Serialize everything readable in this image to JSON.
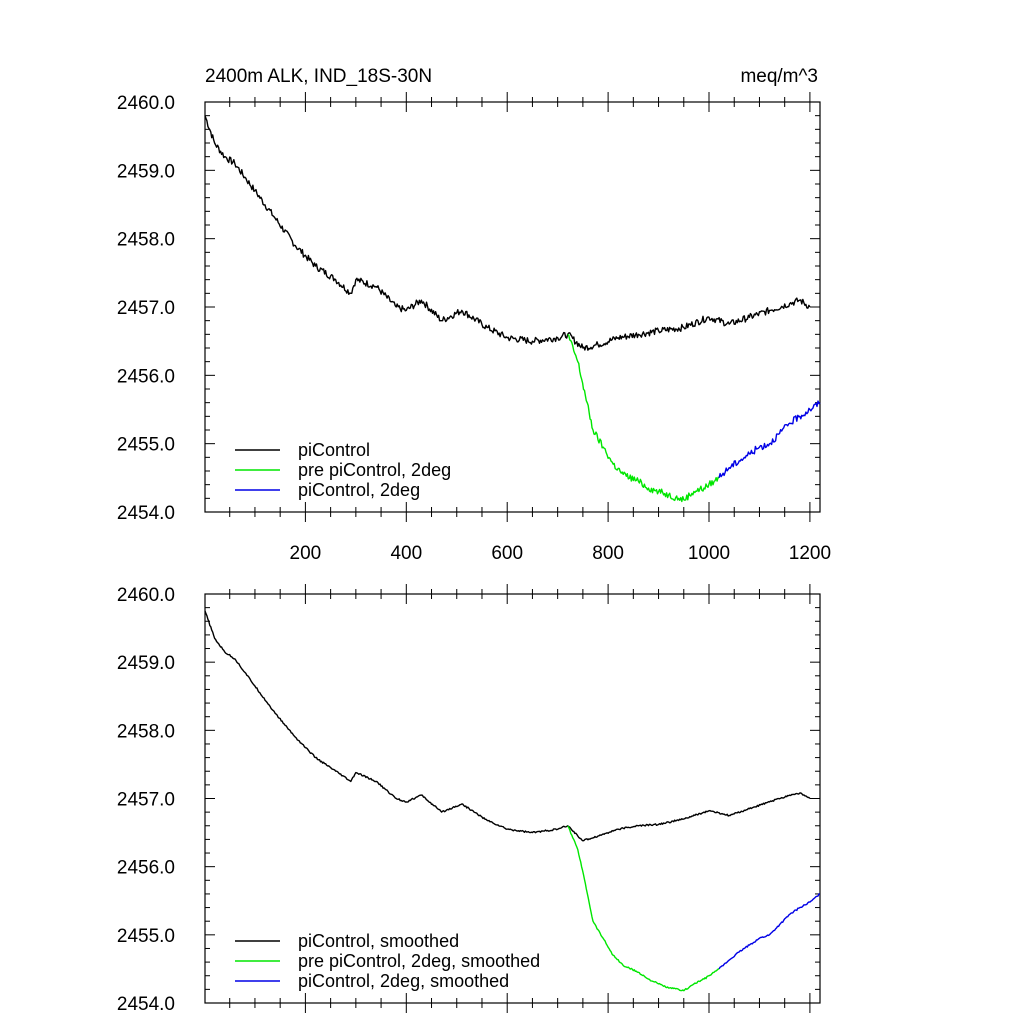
{
  "chart_data": [
    {
      "type": "line",
      "title_left": "2400m ALK, IND_18S-30N",
      "title_right": "meq/m^3",
      "xlim": [
        1,
        1220
      ],
      "ylim": [
        2454.0,
        2460.0
      ],
      "x_ticks": [
        200,
        400,
        600,
        800,
        1000,
        1200
      ],
      "x_tick_labels": [
        "200",
        "400",
        "600",
        "800",
        "1000",
        "1200"
      ],
      "y_ticks": [
        2454.0,
        2455.0,
        2456.0,
        2457.0,
        2458.0,
        2459.0,
        2460.0
      ],
      "y_tick_labels": [
        "2454.0",
        "2455.0",
        "2456.0",
        "2457.0",
        "2458.0",
        "2459.0",
        "2460.0"
      ],
      "legend_position": "bottom-left",
      "series": [
        {
          "name": "piControl",
          "color": "#000000",
          "x": [
            1,
            20,
            40,
            60,
            80,
            100,
            140,
            180,
            220,
            260,
            290,
            300,
            340,
            380,
            400,
            430,
            470,
            510,
            560,
            600,
            650,
            700,
            720,
            750,
            780,
            820,
            860,
            900,
            950,
            1000,
            1040,
            1080,
            1120,
            1160,
            1180,
            1200
          ],
          "y": [
            2459.8,
            2459.4,
            2459.2,
            2459.1,
            2458.9,
            2458.7,
            2458.3,
            2457.9,
            2457.6,
            2457.4,
            2457.2,
            2457.4,
            2457.3,
            2457.0,
            2456.95,
            2457.1,
            2456.8,
            2456.95,
            2456.7,
            2456.55,
            2456.5,
            2456.55,
            2456.6,
            2456.4,
            2456.45,
            2456.55,
            2456.6,
            2456.65,
            2456.7,
            2456.85,
            2456.75,
            2456.85,
            2456.95,
            2457.05,
            2457.1,
            2457.0
          ]
        },
        {
          "name": "pre piControl, 2deg",
          "color": "#00e600",
          "x": [
            720,
            740,
            755,
            770,
            790,
            810,
            830,
            860,
            880,
            900,
            920,
            940,
            950,
            970,
            990,
            1010,
            1020
          ],
          "y": [
            2456.6,
            2456.2,
            2455.7,
            2455.2,
            2454.95,
            2454.7,
            2454.55,
            2454.45,
            2454.35,
            2454.3,
            2454.25,
            2454.2,
            2454.18,
            2454.3,
            2454.35,
            2454.45,
            2454.5
          ]
        },
        {
          "name": "piControl, 2deg",
          "color": "#0000e6",
          "x": [
            1020,
            1040,
            1060,
            1080,
            1100,
            1120,
            1140,
            1160,
            1180,
            1200,
            1220
          ],
          "y": [
            2454.5,
            2454.65,
            2454.75,
            2454.85,
            2454.95,
            2455.0,
            2455.15,
            2455.3,
            2455.4,
            2455.5,
            2455.6
          ]
        }
      ]
    },
    {
      "type": "line",
      "xlim": [
        1,
        1220
      ],
      "ylim": [
        2454.0,
        2460.0
      ],
      "y_ticks": [
        2454.0,
        2455.0,
        2456.0,
        2457.0,
        2458.0,
        2459.0,
        2460.0
      ],
      "y_tick_labels": [
        "2454.0",
        "2455.0",
        "2456.0",
        "2457.0",
        "2458.0",
        "2459.0",
        "2460.0"
      ],
      "x_ticks": [
        200,
        400,
        600,
        800,
        1000,
        1200
      ],
      "legend_position": "bottom-left",
      "series": [
        {
          "name": "piControl, smoothed",
          "color": "#000000",
          "x": [
            1,
            20,
            40,
            60,
            80,
            100,
            140,
            180,
            220,
            260,
            290,
            300,
            340,
            380,
            400,
            430,
            470,
            510,
            560,
            600,
            650,
            700,
            720,
            750,
            780,
            820,
            860,
            900,
            950,
            1000,
            1040,
            1080,
            1120,
            1160,
            1180,
            1200
          ],
          "y": [
            2459.75,
            2459.35,
            2459.15,
            2459.05,
            2458.85,
            2458.65,
            2458.25,
            2457.9,
            2457.6,
            2457.4,
            2457.25,
            2457.38,
            2457.25,
            2457.0,
            2456.95,
            2457.05,
            2456.8,
            2456.92,
            2456.68,
            2456.55,
            2456.5,
            2456.55,
            2456.6,
            2456.38,
            2456.45,
            2456.55,
            2456.6,
            2456.62,
            2456.7,
            2456.82,
            2456.75,
            2456.85,
            2456.95,
            2457.05,
            2457.08,
            2457.0
          ]
        },
        {
          "name": "pre piControl, 2deg, smoothed",
          "color": "#00e600",
          "x": [
            720,
            740,
            755,
            770,
            790,
            810,
            830,
            860,
            880,
            900,
            920,
            940,
            950,
            970,
            990,
            1010,
            1020
          ],
          "y": [
            2456.6,
            2456.25,
            2455.75,
            2455.2,
            2454.95,
            2454.7,
            2454.55,
            2454.45,
            2454.35,
            2454.28,
            2454.22,
            2454.2,
            2454.18,
            2454.28,
            2454.35,
            2454.45,
            2454.5
          ]
        },
        {
          "name": "piControl, 2deg, smoothed",
          "color": "#0000e6",
          "x": [
            1020,
            1040,
            1060,
            1080,
            1100,
            1120,
            1140,
            1160,
            1180,
            1200,
            1220
          ],
          "y": [
            2454.5,
            2454.63,
            2454.75,
            2454.85,
            2454.95,
            2455.0,
            2455.15,
            2455.3,
            2455.4,
            2455.48,
            2455.6
          ]
        }
      ]
    }
  ]
}
